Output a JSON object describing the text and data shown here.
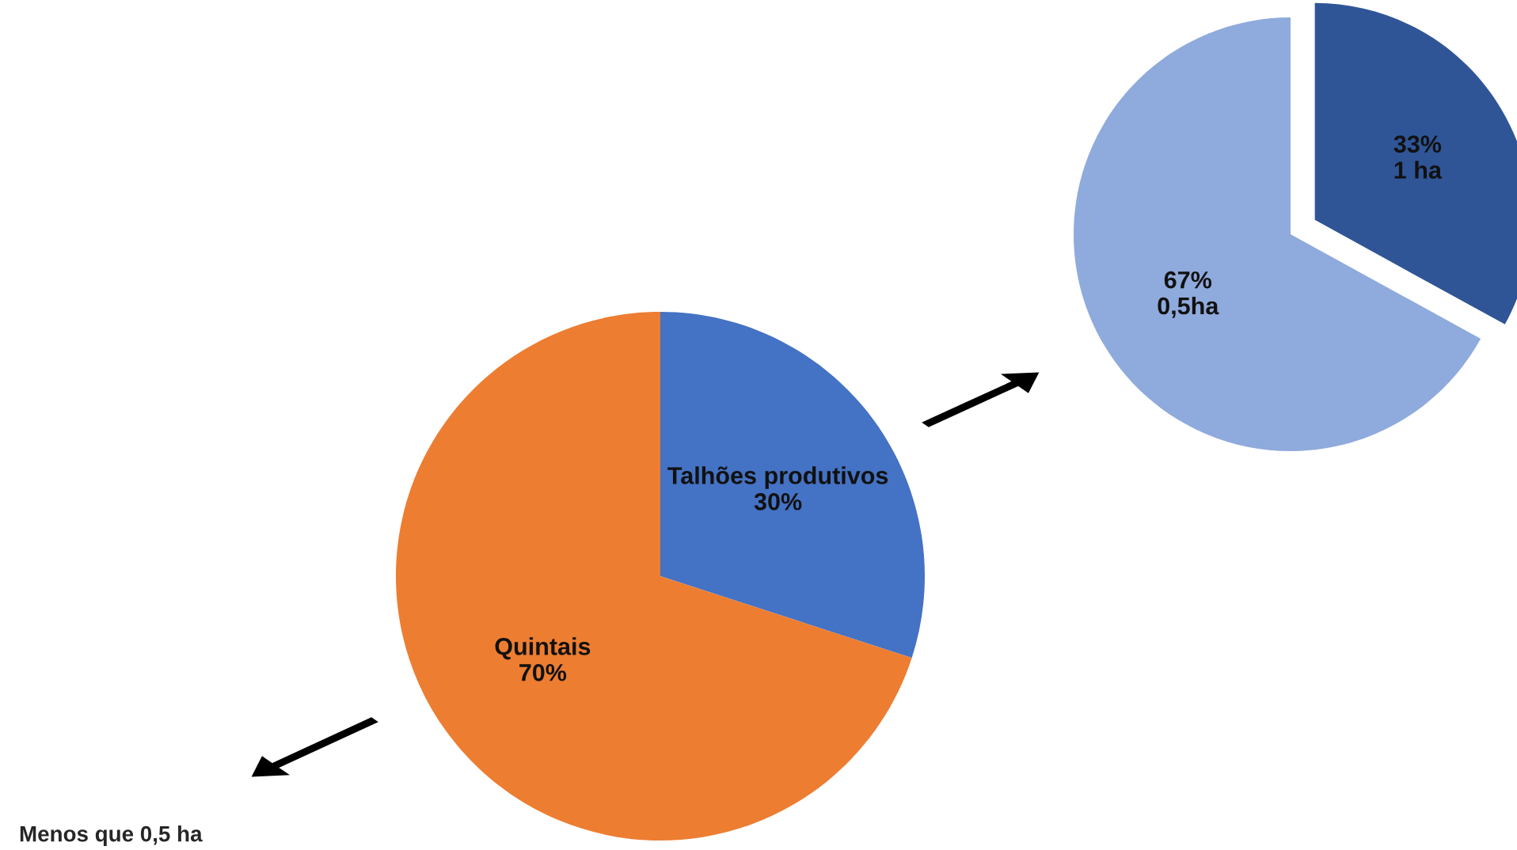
{
  "chart_data": [
    {
      "type": "pie",
      "categories": [
        "Talhões produtivos",
        "Quintais"
      ],
      "values": [
        30,
        70
      ],
      "colors": [
        "#4472c4",
        "#ed7d31"
      ],
      "value_labels": [
        "30%",
        "70%"
      ],
      "annotations": [
        "Menos que 0,5 ha"
      ]
    },
    {
      "type": "pie",
      "categories": [
        null,
        null
      ],
      "values": [
        33,
        67
      ],
      "colors": [
        "#2f5597",
        "#8faadc"
      ],
      "value_labels": [
        "33%\n1 ha",
        "67%\n0,5ha"
      ]
    }
  ]
}
